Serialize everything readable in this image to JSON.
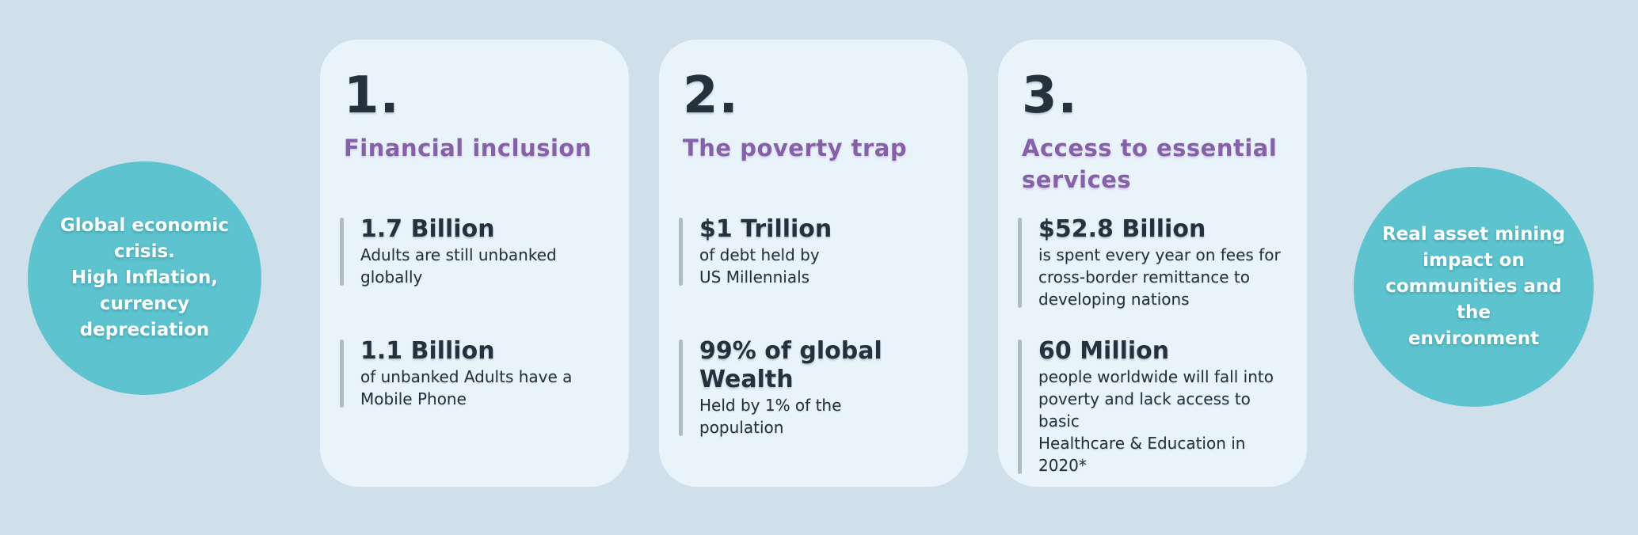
{
  "colors": {
    "page_bg": "#cfe0eb",
    "card_bg": "#e9f3fa",
    "circle_teal": "#5cc3cf",
    "heading_purple": "#8661a9",
    "text_dark": "#25323e",
    "stat_bar": "#aebbc3",
    "circle_text": "#ffffff"
  },
  "left_circle": {
    "lines": [
      "Global economic",
      "crisis.",
      "High Inflation,",
      "currency",
      "depreciation"
    ]
  },
  "right_circle": {
    "lines": [
      "Real asset  mining",
      "impact on",
      "communities and the",
      "environment"
    ]
  },
  "cards": [
    {
      "number": "1.",
      "title_lines": [
        "Financial inclusion"
      ],
      "stats": [
        {
          "value": "1.7 Billion",
          "desc_lines": [
            "Adults are still unbanked",
            "globally"
          ]
        },
        {
          "value": "1.1 Billion",
          "desc_lines": [
            "of unbanked Adults have a",
            "Mobile Phone"
          ]
        }
      ]
    },
    {
      "number": "2.",
      "title_lines": [
        "The poverty trap"
      ],
      "stats": [
        {
          "value": "$1 Trillion",
          "desc_lines": [
            "of debt held by",
            "US Millennials"
          ]
        },
        {
          "value": "99% of global Wealth",
          "desc_lines": [
            "Held by 1% of the",
            "population"
          ]
        }
      ]
    },
    {
      "number": "3.",
      "title_lines": [
        "Access to essential",
        "services"
      ],
      "stats": [
        {
          "value": "$52.8 Billion",
          "desc_lines": [
            "is spent every year on fees for",
            "cross-border remittance to",
            "developing nations"
          ]
        },
        {
          "value": "60 Million",
          "desc_lines": [
            "people worldwide will fall into",
            "poverty and lack access to basic",
            "Healthcare & Education in 2020*"
          ]
        }
      ]
    }
  ]
}
